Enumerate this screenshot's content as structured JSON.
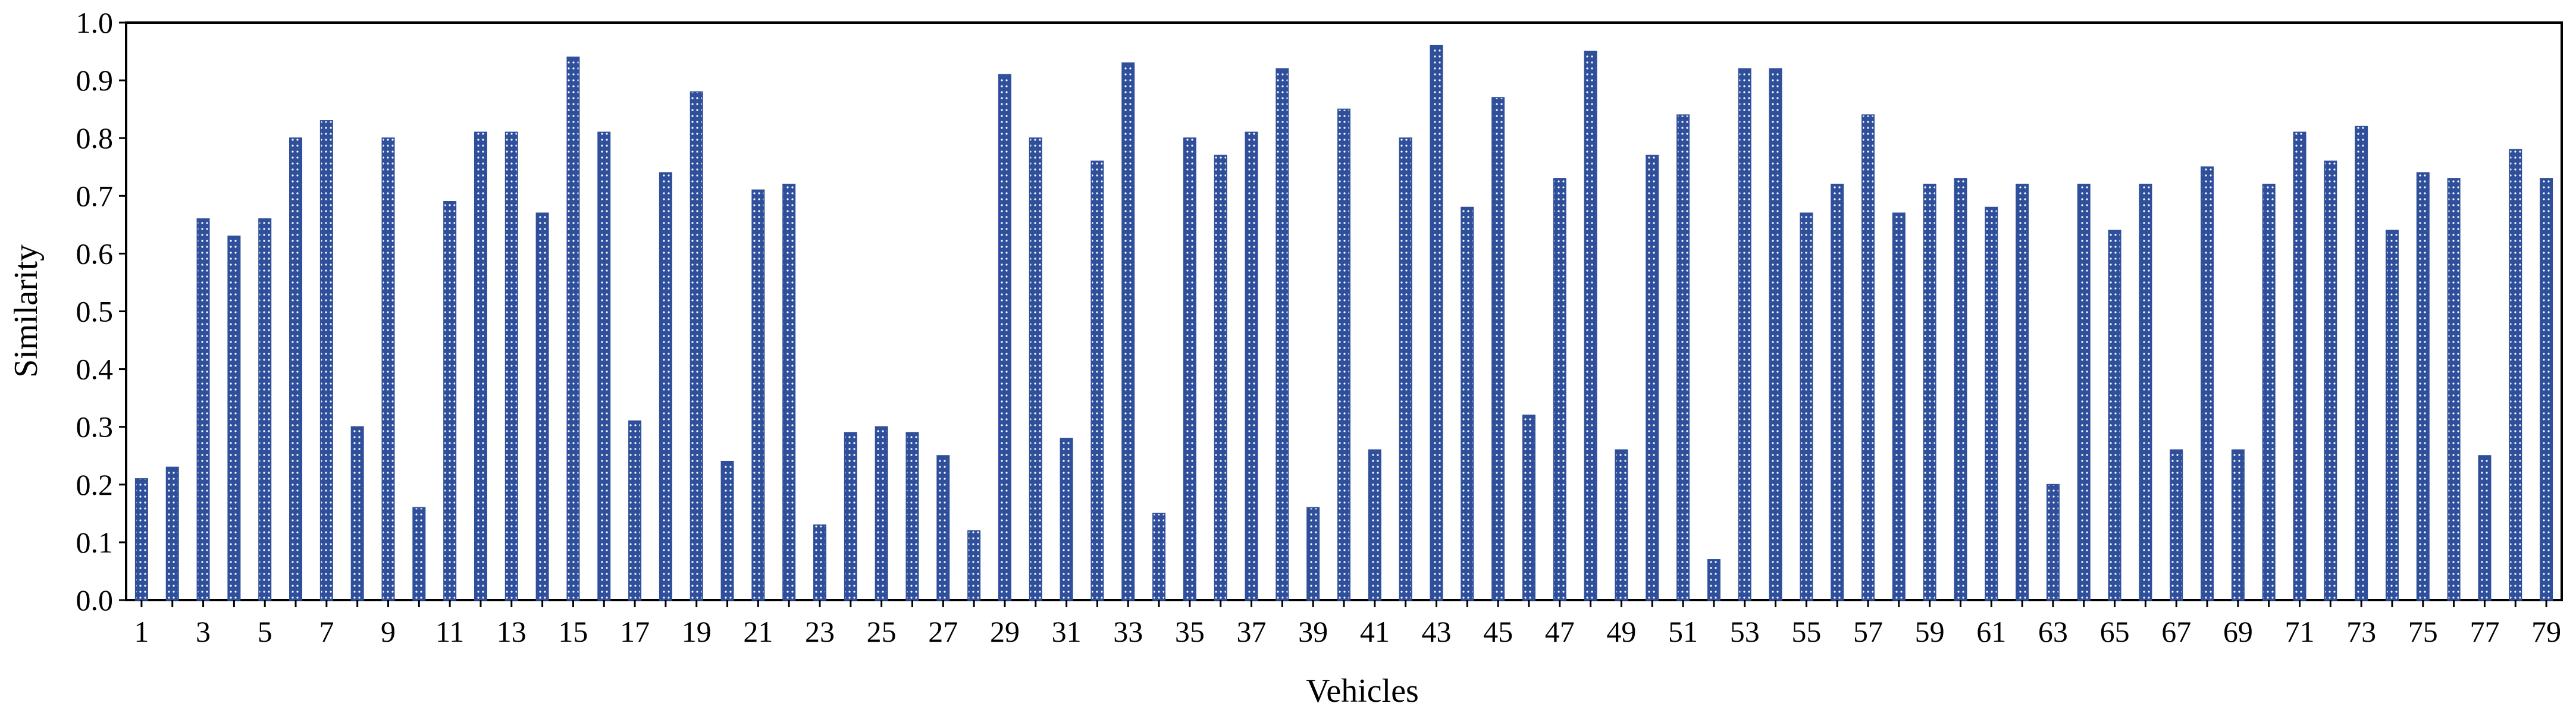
{
  "chart_data": {
    "type": "bar",
    "xlabel": "Vehicles",
    "ylabel": "Similarity",
    "ylim": [
      0,
      1
    ],
    "yticks": [
      "0.0",
      "0.1",
      "0.2",
      "0.3",
      "0.4",
      "0.5",
      "0.6",
      "0.7",
      "0.8",
      "0.9",
      "1.0"
    ],
    "grid": false,
    "legend": "none",
    "bar_color": "#2F4F9A",
    "bar_pattern": "dotted",
    "categories": [
      1,
      2,
      3,
      4,
      5,
      6,
      7,
      8,
      9,
      10,
      11,
      12,
      13,
      14,
      15,
      16,
      17,
      18,
      19,
      20,
      21,
      22,
      23,
      24,
      25,
      26,
      27,
      28,
      29,
      30,
      31,
      32,
      33,
      34,
      35,
      36,
      37,
      38,
      39,
      40,
      41,
      42,
      43,
      44,
      45,
      46,
      47,
      48,
      49,
      50,
      51,
      52,
      53,
      54,
      55,
      56,
      57,
      58,
      59,
      60,
      61,
      62,
      63,
      64,
      65,
      66,
      67,
      68,
      69,
      70,
      71,
      72,
      73,
      74,
      75,
      76,
      77,
      78,
      79
    ],
    "xtick_labels": [
      "1",
      "3",
      "5",
      "7",
      "9",
      "11",
      "13",
      "15",
      "17",
      "19",
      "21",
      "23",
      "25",
      "27",
      "29",
      "31",
      "33",
      "35",
      "37",
      "39",
      "41",
      "43",
      "45",
      "47",
      "49",
      "51",
      "53",
      "55",
      "57",
      "59",
      "61",
      "63",
      "65",
      "67",
      "69",
      "71",
      "73",
      "75",
      "77",
      "79"
    ],
    "values": [
      0.21,
      0.23,
      0.66,
      0.63,
      0.66,
      0.8,
      0.83,
      0.3,
      0.8,
      0.16,
      0.69,
      0.81,
      0.81,
      0.67,
      0.94,
      0.81,
      0.31,
      0.74,
      0.88,
      0.24,
      0.71,
      0.72,
      0.13,
      0.29,
      0.3,
      0.29,
      0.25,
      0.12,
      0.91,
      0.8,
      0.28,
      0.76,
      0.93,
      0.15,
      0.8,
      0.77,
      0.81,
      0.92,
      0.16,
      0.85,
      0.26,
      0.8,
      0.96,
      0.68,
      0.87,
      0.32,
      0.73,
      0.95,
      0.26,
      0.77,
      0.84,
      0.07,
      0.92,
      0.92,
      0.67,
      0.72,
      0.84,
      0.67,
      0.72,
      0.73,
      0.68,
      0.72,
      0.2,
      0.72,
      0.64,
      0.72,
      0.26,
      0.75,
      0.26,
      0.72,
      0.81,
      0.76,
      0.82,
      0.64,
      0.74,
      0.73,
      0.25,
      0.78,
      0.73
    ]
  }
}
